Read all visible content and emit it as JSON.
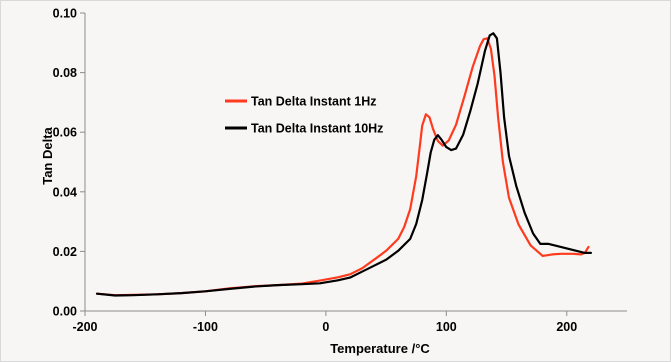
{
  "chart_data": {
    "type": "line",
    "title": "",
    "xlabel": "Temperature /°C",
    "ylabel": "Tan Delta",
    "xlim": [
      -200,
      250
    ],
    "ylim": [
      0,
      0.1
    ],
    "xticks": [
      -200,
      -100,
      0,
      100,
      200
    ],
    "xtick_labels": [
      "-200",
      "-100",
      "0",
      "100",
      "200"
    ],
    "yticks": [
      0,
      0.02,
      0.04,
      0.06,
      0.08,
      0.1
    ],
    "ytick_labels": [
      "0.00",
      "0.02",
      "0.04",
      "0.06",
      "0.08",
      "0.10"
    ],
    "grid": false,
    "legend_position": "center-left",
    "series": [
      {
        "name": "Tan Delta Instant 1Hz",
        "color": "#ff3b1f",
        "points": [
          [
            -190,
            0.0058
          ],
          [
            -175,
            0.0053
          ],
          [
            -160,
            0.0054
          ],
          [
            -140,
            0.0056
          ],
          [
            -120,
            0.006
          ],
          [
            -100,
            0.0066
          ],
          [
            -80,
            0.0076
          ],
          [
            -60,
            0.0083
          ],
          [
            -40,
            0.0087
          ],
          [
            -20,
            0.0092
          ],
          [
            -5,
            0.0102
          ],
          [
            10,
            0.0113
          ],
          [
            20,
            0.0123
          ],
          [
            30,
            0.0143
          ],
          [
            40,
            0.0172
          ],
          [
            50,
            0.0202
          ],
          [
            60,
            0.0242
          ],
          [
            65,
            0.0282
          ],
          [
            70,
            0.0342
          ],
          [
            75,
            0.0452
          ],
          [
            78,
            0.0552
          ],
          [
            80,
            0.0622
          ],
          [
            83,
            0.066
          ],
          [
            86,
            0.065
          ],
          [
            89,
            0.061
          ],
          [
            93,
            0.057
          ],
          [
            97,
            0.0555
          ],
          [
            102,
            0.0572
          ],
          [
            108,
            0.0625
          ],
          [
            115,
            0.072
          ],
          [
            122,
            0.082
          ],
          [
            128,
            0.089
          ],
          [
            131,
            0.0912
          ],
          [
            134,
            0.0915
          ],
          [
            137,
            0.088
          ],
          [
            140,
            0.079
          ],
          [
            143,
            0.065
          ],
          [
            147,
            0.05
          ],
          [
            152,
            0.038
          ],
          [
            160,
            0.029
          ],
          [
            170,
            0.022
          ],
          [
            180,
            0.0185
          ],
          [
            188,
            0.019
          ],
          [
            195,
            0.0192
          ],
          [
            205,
            0.0192
          ],
          [
            212,
            0.019
          ],
          [
            215,
            0.0195
          ],
          [
            218,
            0.0215
          ]
        ]
      },
      {
        "name": "Tan Delta Instant 10Hz",
        "color": "#000000",
        "points": [
          [
            -190,
            0.0058
          ],
          [
            -175,
            0.0052
          ],
          [
            -160,
            0.0053
          ],
          [
            -140,
            0.0056
          ],
          [
            -120,
            0.006
          ],
          [
            -100,
            0.0066
          ],
          [
            -80,
            0.0074
          ],
          [
            -60,
            0.0082
          ],
          [
            -40,
            0.0087
          ],
          [
            -20,
            0.009
          ],
          [
            -5,
            0.0093
          ],
          [
            10,
            0.0103
          ],
          [
            20,
            0.0112
          ],
          [
            30,
            0.0132
          ],
          [
            40,
            0.0152
          ],
          [
            50,
            0.0172
          ],
          [
            60,
            0.0202
          ],
          [
            70,
            0.0242
          ],
          [
            75,
            0.0292
          ],
          [
            80,
            0.0372
          ],
          [
            84,
            0.0462
          ],
          [
            87,
            0.0532
          ],
          [
            90,
            0.0575
          ],
          [
            93,
            0.059
          ],
          [
            96,
            0.0575
          ],
          [
            100,
            0.055
          ],
          [
            104,
            0.054
          ],
          [
            108,
            0.0545
          ],
          [
            114,
            0.0592
          ],
          [
            120,
            0.0672
          ],
          [
            126,
            0.0762
          ],
          [
            132,
            0.0872
          ],
          [
            136,
            0.0925
          ],
          [
            139,
            0.0932
          ],
          [
            142,
            0.0915
          ],
          [
            145,
            0.08
          ],
          [
            148,
            0.065
          ],
          [
            152,
            0.052
          ],
          [
            158,
            0.042
          ],
          [
            165,
            0.033
          ],
          [
            172,
            0.026
          ],
          [
            178,
            0.0225
          ],
          [
            185,
            0.0225
          ],
          [
            195,
            0.0215
          ],
          [
            205,
            0.0205
          ],
          [
            215,
            0.0195
          ],
          [
            220,
            0.0195
          ]
        ]
      }
    ]
  }
}
